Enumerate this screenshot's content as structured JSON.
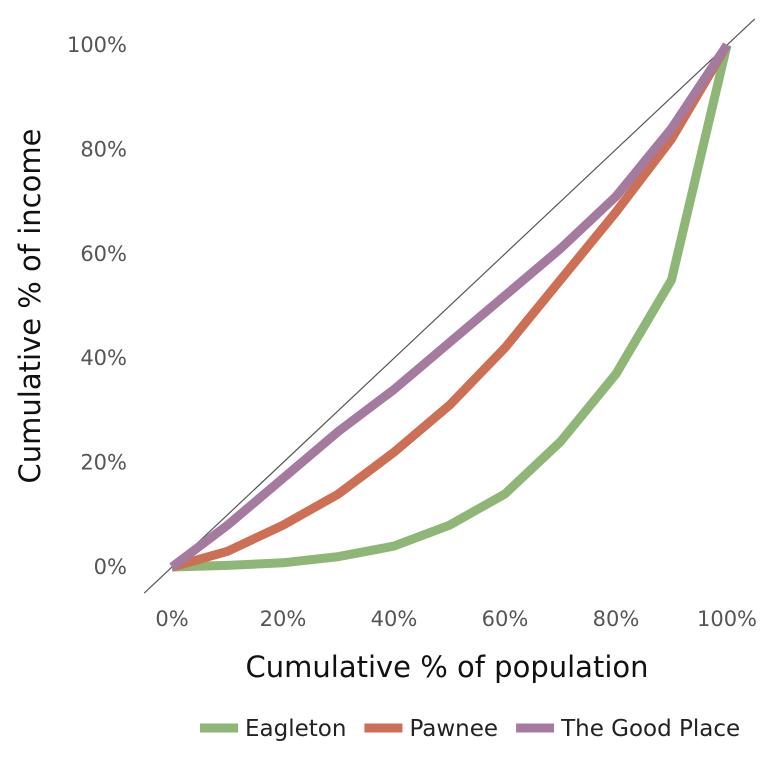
{
  "chart_data": {
    "type": "line",
    "title": "",
    "xlabel": "Cumulative % of population",
    "ylabel": "Cumulative % of income",
    "xlim": [
      0,
      100
    ],
    "ylim": [
      0,
      100
    ],
    "x_ticks": [
      "0%",
      "20%",
      "40%",
      "60%",
      "80%",
      "100%"
    ],
    "y_ticks": [
      "0%",
      "20%",
      "40%",
      "60%",
      "80%",
      "100%"
    ],
    "grid": false,
    "legend_position": "bottom",
    "reference_line": "equality diagonal",
    "x": [
      0,
      10,
      20,
      30,
      40,
      50,
      60,
      70,
      80,
      90,
      100
    ],
    "series": [
      {
        "name": "Eagleton",
        "color": "#8db677",
        "values": [
          0,
          0.3,
          0.8,
          2,
          4,
          8,
          14,
          24,
          37,
          55,
          100
        ]
      },
      {
        "name": "Pawnee",
        "color": "#cc6f55",
        "values": [
          0,
          3,
          8,
          14,
          22,
          31,
          42,
          55,
          68,
          82,
          100
        ]
      },
      {
        "name": "The Good Place",
        "color": "#a57a9f",
        "values": [
          0,
          8,
          17,
          26,
          34,
          43,
          52,
          61,
          71,
          84,
          100
        ]
      }
    ]
  }
}
